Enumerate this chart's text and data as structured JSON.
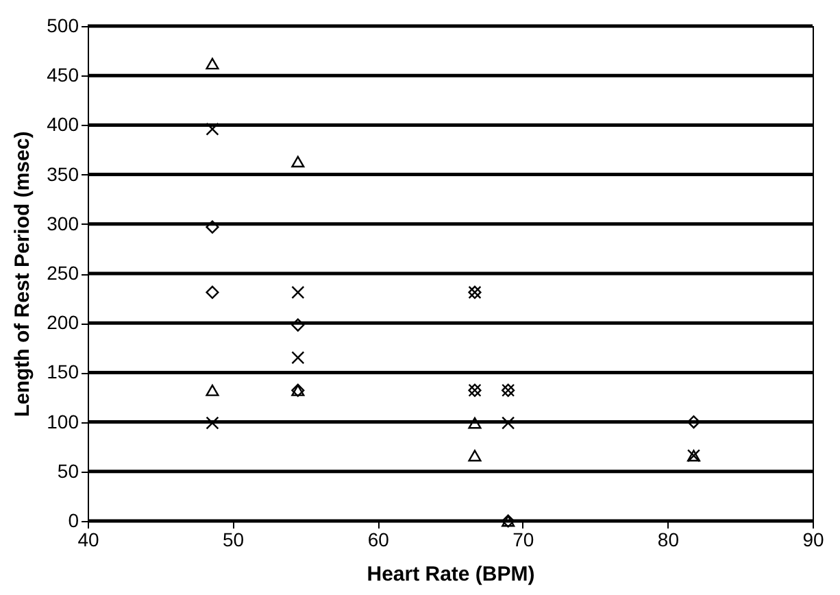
{
  "chart_data": {
    "type": "scatter",
    "xlabel": "Heart Rate (BPM)",
    "ylabel": "Length of Rest Period (msec)",
    "xlim": [
      40,
      90
    ],
    "xticks": [
      40,
      50,
      60,
      70,
      80,
      90
    ],
    "ylim": [
      0,
      500
    ],
    "yticks": [
      0,
      50,
      100,
      150,
      200,
      250,
      300,
      350,
      400,
      450,
      500
    ],
    "grid": "y",
    "legend": false,
    "series": [
      {
        "color": "#000000",
        "marker": "diamond",
        "x": [
          48.6,
          48.6,
          54.5,
          54.5,
          66.7,
          66.7,
          69.0,
          69.0,
          81.8
        ],
        "values": [
          297,
          231,
          198,
          132,
          231,
          132,
          132,
          0,
          100
        ]
      },
      {
        "color": "#000000",
        "marker": "cross",
        "x": [
          48.6,
          48.6,
          54.5,
          54.5,
          66.7,
          66.7,
          69.0,
          69.0,
          81.8
        ],
        "values": [
          396,
          99,
          231,
          165,
          231,
          132,
          132,
          99,
          66
        ]
      },
      {
        "color": "#000000",
        "marker": "triangle",
        "x": [
          48.6,
          48.6,
          54.5,
          54.5,
          66.7,
          66.7,
          69.0,
          81.8
        ],
        "values": [
          462,
          132,
          363,
          132,
          99,
          66,
          0,
          66
        ]
      }
    ]
  }
}
